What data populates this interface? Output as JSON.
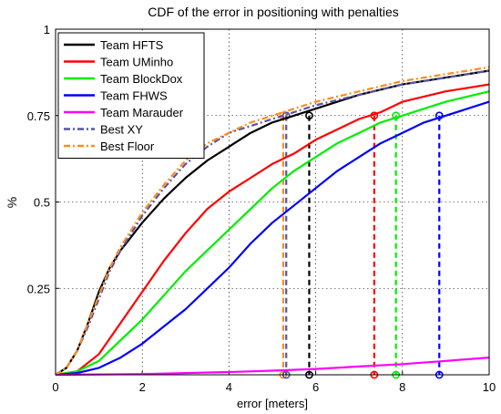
{
  "chart_data": {
    "type": "line",
    "title": "CDF of the error in positioning with penalties",
    "xlabel": "error [meters]",
    "ylabel": "%",
    "xlim": [
      0,
      10
    ],
    "ylim": [
      0,
      1
    ],
    "xticks": [
      "0",
      "2",
      "4",
      "6",
      "8",
      "10"
    ],
    "xtick_values": [
      0,
      2,
      4,
      6,
      8,
      10
    ],
    "yticks": [
      "0.25",
      "0.5",
      "0.75",
      "1"
    ],
    "ytick_values": [
      0.25,
      0.5,
      0.75,
      1
    ],
    "grid": true,
    "legend_position": "top-left",
    "series": [
      {
        "name": "Team HFTS",
        "color": "#000000",
        "style": "solid",
        "x": [
          0,
          0.25,
          0.5,
          0.75,
          1,
          1.25,
          1.5,
          1.75,
          2,
          2.5,
          3,
          3.5,
          4,
          4.5,
          5,
          5.5,
          6,
          7,
          8,
          9,
          10
        ],
        "y": [
          0,
          0.02,
          0.07,
          0.15,
          0.24,
          0.31,
          0.36,
          0.4,
          0.44,
          0.51,
          0.57,
          0.62,
          0.66,
          0.7,
          0.73,
          0.75,
          0.77,
          0.81,
          0.84,
          0.86,
          0.88
        ]
      },
      {
        "name": "Team UMinho",
        "color": "#ff0000",
        "style": "solid",
        "x": [
          0,
          0.5,
          1,
          1.5,
          2,
          2.5,
          3,
          3.5,
          4,
          4.5,
          5,
          5.5,
          6,
          6.5,
          7,
          7.5,
          8,
          9,
          10
        ],
        "y": [
          0,
          0.01,
          0.06,
          0.15,
          0.24,
          0.33,
          0.41,
          0.48,
          0.53,
          0.57,
          0.61,
          0.64,
          0.68,
          0.71,
          0.74,
          0.76,
          0.79,
          0.82,
          0.84
        ]
      },
      {
        "name": "Team BlockDox",
        "color": "#00ee00",
        "style": "solid",
        "x": [
          0,
          0.5,
          1,
          1.5,
          2,
          2.5,
          3,
          3.5,
          4,
          4.5,
          5,
          5.5,
          6,
          6.5,
          7,
          7.5,
          8,
          9,
          10
        ],
        "y": [
          0,
          0.01,
          0.04,
          0.1,
          0.16,
          0.23,
          0.3,
          0.36,
          0.42,
          0.48,
          0.54,
          0.59,
          0.63,
          0.67,
          0.7,
          0.73,
          0.75,
          0.79,
          0.82
        ]
      },
      {
        "name": "Team FHWS",
        "color": "#0000ff",
        "style": "solid",
        "x": [
          0,
          0.5,
          1,
          1.5,
          2,
          2.5,
          3,
          3.5,
          4,
          4.5,
          5,
          5.5,
          6,
          6.5,
          7,
          7.5,
          8,
          8.5,
          9,
          9.5,
          10
        ],
        "y": [
          0,
          0.005,
          0.02,
          0.05,
          0.09,
          0.14,
          0.19,
          0.25,
          0.31,
          0.38,
          0.44,
          0.49,
          0.54,
          0.59,
          0.63,
          0.67,
          0.7,
          0.73,
          0.75,
          0.77,
          0.79
        ]
      },
      {
        "name": "Team Marauder",
        "color": "#ff00ff",
        "style": "solid",
        "x": [
          0,
          2,
          4,
          5,
          6,
          7,
          8,
          9,
          10
        ],
        "y": [
          0,
          0.002,
          0.008,
          0.012,
          0.017,
          0.024,
          0.031,
          0.04,
          0.05
        ]
      },
      {
        "name": "Best XY",
        "color": "#5555aa",
        "style": "dashdot",
        "x": [
          0,
          0.25,
          0.5,
          0.75,
          1,
          1.25,
          1.5,
          2,
          2.5,
          3,
          3.5,
          4,
          4.5,
          5,
          5.5,
          6,
          7,
          8,
          9,
          10
        ],
        "y": [
          0,
          0.02,
          0.07,
          0.14,
          0.22,
          0.3,
          0.36,
          0.46,
          0.54,
          0.61,
          0.66,
          0.7,
          0.72,
          0.74,
          0.76,
          0.78,
          0.81,
          0.84,
          0.86,
          0.88
        ]
      },
      {
        "name": "Best Floor",
        "color": "#ff8c1a",
        "style": "dashdot",
        "x": [
          0,
          0.25,
          0.5,
          0.75,
          1,
          1.25,
          1.5,
          2,
          2.5,
          3,
          3.5,
          4,
          4.5,
          5,
          5.5,
          6,
          7,
          8,
          9,
          10
        ],
        "y": [
          0,
          0.02,
          0.07,
          0.15,
          0.23,
          0.31,
          0.37,
          0.47,
          0.55,
          0.62,
          0.67,
          0.7,
          0.73,
          0.75,
          0.77,
          0.79,
          0.82,
          0.85,
          0.87,
          0.89
        ]
      }
    ],
    "percentile_markers": [
      {
        "color": "#ff8c1a",
        "x": 5.25,
        "y": 0.75
      },
      {
        "color": "#5555aa",
        "x": 5.32,
        "y": 0.75
      },
      {
        "color": "#000000",
        "x": 5.85,
        "y": 0.75
      },
      {
        "color": "#ff0000",
        "x": 7.35,
        "y": 0.75
      },
      {
        "color": "#00ee00",
        "x": 7.85,
        "y": 0.75
      },
      {
        "color": "#0000ff",
        "x": 8.85,
        "y": 0.75
      }
    ]
  }
}
